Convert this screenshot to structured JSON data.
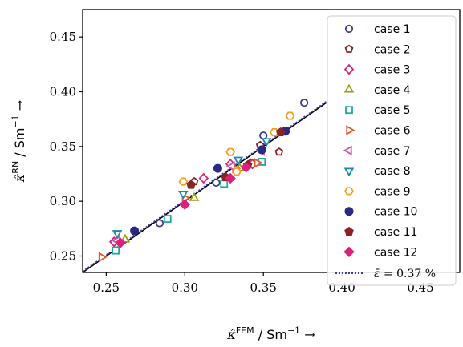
{
  "chart_data": {
    "type": "scatter",
    "xlabel_parts": {
      "symbol": "κ̂",
      "sup": "FEM",
      "unit": " / Sm",
      "exp": "−1",
      "arrow": " →"
    },
    "ylabel_parts": {
      "symbol": "κ̂",
      "sup": "RN",
      "unit": " / Sm",
      "exp": "−1",
      "arrow": " →"
    },
    "xlim": [
      0.235,
      0.475
    ],
    "ylim": [
      0.235,
      0.475
    ],
    "xticks": [
      "0.25",
      "0.30",
      "0.35",
      "0.40",
      "0.45"
    ],
    "yticks": [
      "0.25",
      "0.30",
      "0.35",
      "0.40",
      "0.45"
    ],
    "grid": false,
    "legend_position": "right",
    "series": [
      {
        "name": "case 1",
        "marker": "circle-open",
        "color": "#3b3b8f",
        "points": [
          [
            0.284,
            0.28
          ],
          [
            0.32,
            0.317
          ],
          [
            0.35,
            0.36
          ],
          [
            0.376,
            0.39
          ]
        ]
      },
      {
        "name": "case 2",
        "marker": "pentagon-open",
        "color": "#8b2323",
        "points": [
          [
            0.306,
            0.318
          ],
          [
            0.342,
            0.335
          ],
          [
            0.348,
            0.351
          ],
          [
            0.36,
            0.345
          ]
        ]
      },
      {
        "name": "case 3",
        "marker": "diamond-open",
        "color": "#d6247a",
        "points": [
          [
            0.255,
            0.263
          ],
          [
            0.312,
            0.321
          ],
          [
            0.329,
            0.334
          ],
          [
            0.343,
            0.334
          ]
        ]
      },
      {
        "name": "case 4",
        "marker": "triangle-up-open",
        "color": "#9a9a1a",
        "points": [
          [
            0.262,
            0.265
          ],
          [
            0.306,
            0.303
          ],
          [
            0.335,
            0.33
          ]
        ]
      },
      {
        "name": "case 5",
        "marker": "square-open",
        "color": "#1aaaa0",
        "points": [
          [
            0.256,
            0.255
          ],
          [
            0.289,
            0.284
          ],
          [
            0.325,
            0.316
          ],
          [
            0.349,
            0.336
          ]
        ]
      },
      {
        "name": "case 6",
        "marker": "triangle-right-open",
        "color": "#e8552a",
        "points": [
          [
            0.247,
            0.249
          ],
          [
            0.3,
            0.303
          ],
          [
            0.332,
            0.33
          ],
          [
            0.346,
            0.335
          ]
        ]
      },
      {
        "name": "case 7",
        "marker": "triangle-left-open",
        "color": "#c85ab4",
        "points": [
          [
            0.257,
            0.264
          ],
          [
            0.33,
            0.332
          ],
          [
            0.349,
            0.346
          ]
        ]
      },
      {
        "name": "case 8",
        "marker": "triangle-down-open",
        "color": "#1a8aaa",
        "points": [
          [
            0.257,
            0.271
          ],
          [
            0.299,
            0.307
          ],
          [
            0.334,
            0.338
          ],
          [
            0.352,
            0.355
          ]
        ]
      },
      {
        "name": "case 9",
        "marker": "hexagon-open",
        "color": "#f5a020",
        "points": [
          [
            0.299,
            0.318
          ],
          [
            0.329,
            0.345
          ],
          [
            0.333,
            0.327
          ],
          [
            0.357,
            0.363
          ],
          [
            0.367,
            0.378
          ]
        ]
      },
      {
        "name": "case 10",
        "marker": "circle-filled",
        "color": "#2a2a82",
        "points": [
          [
            0.268,
            0.273
          ],
          [
            0.321,
            0.33
          ],
          [
            0.349,
            0.347
          ],
          [
            0.364,
            0.364
          ]
        ]
      },
      {
        "name": "case 11",
        "marker": "pentagon-filled",
        "color": "#8b2323",
        "points": [
          [
            0.304,
            0.315
          ],
          [
            0.326,
            0.322
          ],
          [
            0.34,
            0.333
          ],
          [
            0.361,
            0.363
          ]
        ]
      },
      {
        "name": "case 12",
        "marker": "diamond-filled",
        "color": "#e01f7a",
        "points": [
          [
            0.259,
            0.262
          ],
          [
            0.3,
            0.297
          ],
          [
            0.329,
            0.321
          ],
          [
            0.339,
            0.331
          ]
        ]
      }
    ],
    "lines": [
      {
        "name": "identity",
        "style": "solid",
        "color": "#000000",
        "from": [
          0.235,
          0.235
        ],
        "to": [
          0.39,
          0.39
        ]
      },
      {
        "name": "ε̄ = 0.37 %",
        "style": "dotted",
        "color": "#3a3ab0",
        "from": [
          0.235,
          0.236
        ],
        "to": [
          0.39,
          0.391
        ]
      }
    ],
    "legend_fit_label_parts": {
      "symbol": "ε̄",
      "eq": " = 0.37 %"
    }
  }
}
